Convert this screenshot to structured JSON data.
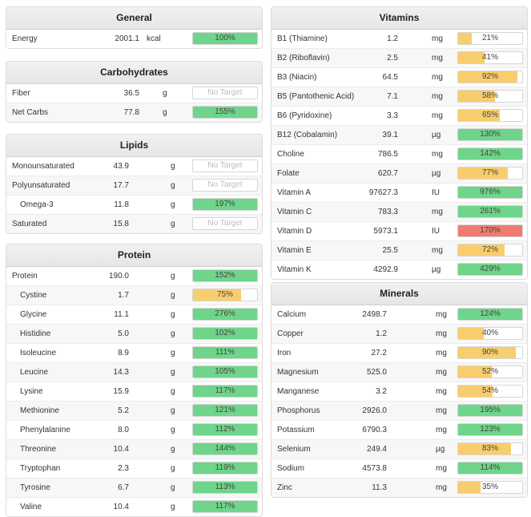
{
  "colors": {
    "green": "#6ed58a",
    "yellow": "#f8cd6d",
    "red": "#ef7c70"
  },
  "general": {
    "title": "General",
    "rows": [
      {
        "name": "Energy",
        "amount": "2001.1",
        "unit": "kcal",
        "pct": 100,
        "label": "100%",
        "color": "green"
      }
    ]
  },
  "carbohydrates": {
    "title": "Carbohydrates",
    "rows": [
      {
        "name": "Fiber",
        "amount": "36.5",
        "unit": "g",
        "pct": 0,
        "label": "No Target",
        "color": "none"
      },
      {
        "name": "Net Carbs",
        "amount": "77.8",
        "unit": "g",
        "pct": 155,
        "label": "155%",
        "color": "green"
      }
    ]
  },
  "lipids": {
    "title": "Lipids",
    "rows": [
      {
        "name": "Monounsaturated",
        "amount": "43.9",
        "unit": "g",
        "pct": 0,
        "label": "No Target",
        "color": "none"
      },
      {
        "name": "Polyunsaturated",
        "amount": "17.7",
        "unit": "g",
        "pct": 0,
        "label": "No Target",
        "color": "none"
      },
      {
        "name": "Omega-3",
        "amount": "11.8",
        "unit": "g",
        "pct": 197,
        "label": "197%",
        "color": "green",
        "indent": true
      },
      {
        "name": "Saturated",
        "amount": "15.8",
        "unit": "g",
        "pct": 0,
        "label": "No Target",
        "color": "none"
      }
    ]
  },
  "protein": {
    "title": "Protein",
    "rows": [
      {
        "name": "Protein",
        "amount": "190.0",
        "unit": "g",
        "pct": 152,
        "label": "152%",
        "color": "green"
      },
      {
        "name": "Cystine",
        "amount": "1.7",
        "unit": "g",
        "pct": 75,
        "label": "75%",
        "color": "yellow",
        "indent": true
      },
      {
        "name": "Glycine",
        "amount": "11.1",
        "unit": "g",
        "pct": 276,
        "label": "276%",
        "color": "green",
        "indent": true
      },
      {
        "name": "Histidine",
        "amount": "5.0",
        "unit": "g",
        "pct": 102,
        "label": "102%",
        "color": "green",
        "indent": true
      },
      {
        "name": "Isoleucine",
        "amount": "8.9",
        "unit": "g",
        "pct": 111,
        "label": "111%",
        "color": "green",
        "indent": true
      },
      {
        "name": "Leucine",
        "amount": "14.3",
        "unit": "g",
        "pct": 105,
        "label": "105%",
        "color": "green",
        "indent": true
      },
      {
        "name": "Lysine",
        "amount": "15.9",
        "unit": "g",
        "pct": 117,
        "label": "117%",
        "color": "green",
        "indent": true
      },
      {
        "name": "Methionine",
        "amount": "5.2",
        "unit": "g",
        "pct": 121,
        "label": "121%",
        "color": "green",
        "indent": true
      },
      {
        "name": "Phenylalanine",
        "amount": "8.0",
        "unit": "g",
        "pct": 112,
        "label": "112%",
        "color": "green",
        "indent": true
      },
      {
        "name": "Threonine",
        "amount": "10.4",
        "unit": "g",
        "pct": 144,
        "label": "144%",
        "color": "green",
        "indent": true
      },
      {
        "name": "Tryptophan",
        "amount": "2.3",
        "unit": "g",
        "pct": 119,
        "label": "119%",
        "color": "green",
        "indent": true
      },
      {
        "name": "Tyrosine",
        "amount": "6.7",
        "unit": "g",
        "pct": 113,
        "label": "113%",
        "color": "green",
        "indent": true
      },
      {
        "name": "Valine",
        "amount": "10.4",
        "unit": "g",
        "pct": 117,
        "label": "117%",
        "color": "green",
        "indent": true
      }
    ]
  },
  "vitamins": {
    "title": "Vitamins",
    "rows": [
      {
        "name": "B1 (Thiamine)",
        "amount": "1.2",
        "unit": "mg",
        "pct": 21,
        "label": "21%",
        "color": "yellow"
      },
      {
        "name": "B2 (Riboflavin)",
        "amount": "2.5",
        "unit": "mg",
        "pct": 41,
        "label": "41%",
        "color": "yellow"
      },
      {
        "name": "B3 (Niacin)",
        "amount": "64.5",
        "unit": "mg",
        "pct": 92,
        "label": "92%",
        "color": "yellow"
      },
      {
        "name": "B5 (Pantothenic Acid)",
        "amount": "7.1",
        "unit": "mg",
        "pct": 58,
        "label": "58%",
        "color": "yellow"
      },
      {
        "name": "B6 (Pyridoxine)",
        "amount": "3.3",
        "unit": "mg",
        "pct": 65,
        "label": "65%",
        "color": "yellow"
      },
      {
        "name": "B12 (Cobalamin)",
        "amount": "39.1",
        "unit": "µg",
        "pct": 130,
        "label": "130%",
        "color": "green"
      },
      {
        "name": "Choline",
        "amount": "786.5",
        "unit": "mg",
        "pct": 142,
        "label": "142%",
        "color": "green"
      },
      {
        "name": "Folate",
        "amount": "620.7",
        "unit": "µg",
        "pct": 77,
        "label": "77%",
        "color": "yellow"
      },
      {
        "name": "Vitamin A",
        "amount": "97627.3",
        "unit": "IU",
        "pct": 976,
        "label": "976%",
        "color": "green"
      },
      {
        "name": "Vitamin C",
        "amount": "783.3",
        "unit": "mg",
        "pct": 261,
        "label": "261%",
        "color": "green"
      },
      {
        "name": "Vitamin D",
        "amount": "5973.1",
        "unit": "IU",
        "pct": 170,
        "label": "170%",
        "color": "red"
      },
      {
        "name": "Vitamin E",
        "amount": "25.5",
        "unit": "mg",
        "pct": 72,
        "label": "72%",
        "color": "yellow"
      },
      {
        "name": "Vitamin K",
        "amount": "4292.9",
        "unit": "µg",
        "pct": 429,
        "label": "429%",
        "color": "green"
      }
    ]
  },
  "minerals": {
    "title": "Minerals",
    "rows": [
      {
        "name": "Calcium",
        "amount": "2498.7",
        "unit": "mg",
        "pct": 124,
        "label": "124%",
        "color": "green"
      },
      {
        "name": "Copper",
        "amount": "1.2",
        "unit": "mg",
        "pct": 40,
        "label": "40%",
        "color": "yellow"
      },
      {
        "name": "Iron",
        "amount": "27.2",
        "unit": "mg",
        "pct": 90,
        "label": "90%",
        "color": "yellow"
      },
      {
        "name": "Magnesium",
        "amount": "525.0",
        "unit": "mg",
        "pct": 52,
        "label": "52%",
        "color": "yellow"
      },
      {
        "name": "Manganese",
        "amount": "3.2",
        "unit": "mg",
        "pct": 54,
        "label": "54%",
        "color": "yellow"
      },
      {
        "name": "Phosphorus",
        "amount": "2926.0",
        "unit": "mg",
        "pct": 195,
        "label": "195%",
        "color": "green"
      },
      {
        "name": "Potassium",
        "amount": "6790.3",
        "unit": "mg",
        "pct": 123,
        "label": "123%",
        "color": "green"
      },
      {
        "name": "Selenium",
        "amount": "249.4",
        "unit": "µg",
        "pct": 83,
        "label": "83%",
        "color": "yellow"
      },
      {
        "name": "Sodium",
        "amount": "4573.8",
        "unit": "mg",
        "pct": 114,
        "label": "114%",
        "color": "green"
      },
      {
        "name": "Zinc",
        "amount": "11.3",
        "unit": "mg",
        "pct": 35,
        "label": "35%",
        "color": "yellow"
      }
    ]
  }
}
